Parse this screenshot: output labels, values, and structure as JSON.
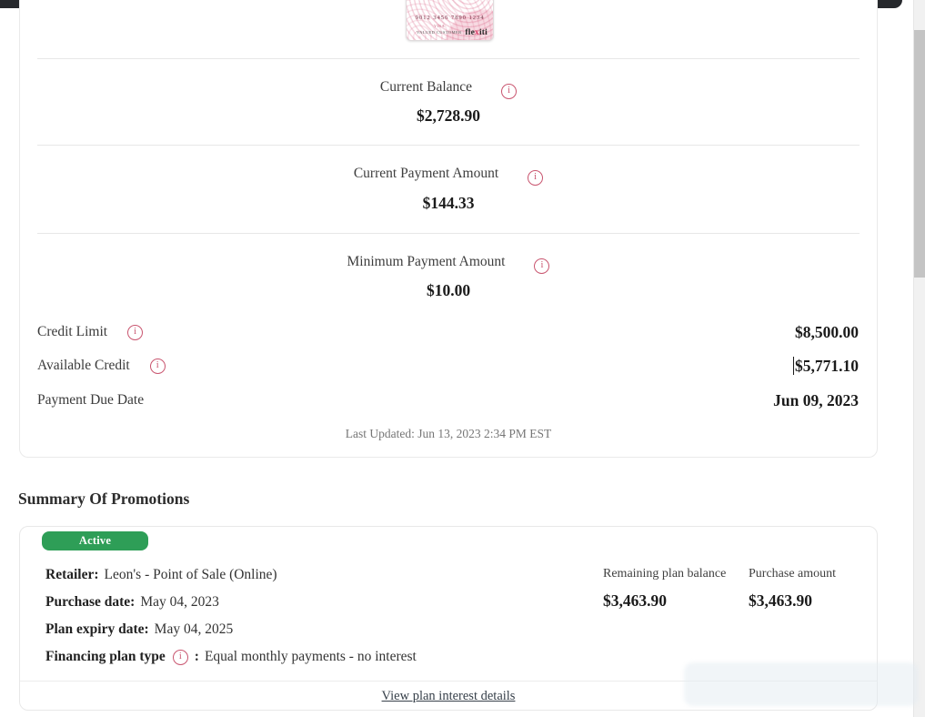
{
  "account": {
    "card_preview": {
      "number": "9012 3456 7890 1234",
      "network": "VISA",
      "cardholder": "VALUED CUSTOMER",
      "brand_prefix": "fle",
      "brand_x": "x",
      "brand_suffix": "iti"
    },
    "metrics": [
      {
        "label": "Current Balance",
        "value": "$2,728.90"
      },
      {
        "label": "Current Payment Amount",
        "value": "$144.33"
      },
      {
        "label": "Minimum Payment Amount",
        "value": "$10.00"
      }
    ],
    "rows": [
      {
        "label": "Credit Limit",
        "value": "$8,500.00"
      },
      {
        "label": "Available Credit",
        "value": "$5,771.10"
      },
      {
        "label": "Payment Due Date",
        "value": "Jun 09, 2023"
      }
    ],
    "last_updated": "Last Updated: Jun 13, 2023 2:34 PM EST"
  },
  "promotions": {
    "heading": "Summary Of Promotions",
    "status_badge": "Active",
    "retailer_label": "Retailer:",
    "retailer_value": "Leon's - Point of Sale (Online)",
    "purchase_date_label": "Purchase date:",
    "purchase_date_value": "May 04, 2023",
    "plan_expiry_label": "Plan expiry date:",
    "plan_expiry_value": "May 04, 2025",
    "financing_label": "Financing plan type",
    "financing_separator": ":",
    "financing_value": "Equal monthly payments - no interest",
    "columns": [
      {
        "header": "Remaining plan balance",
        "value": "$3,463.90"
      },
      {
        "header": "Purchase amount",
        "value": "$3,463.90"
      }
    ],
    "footer_link": "View plan interest details"
  },
  "colors": {
    "accent_pink": "#c9556f",
    "brand_x_pink": "#d8335f",
    "badge_green": "#2e9e57",
    "divider": "#e7e7e7",
    "muted_text": "#767676",
    "dark_bar": "#26282c"
  }
}
